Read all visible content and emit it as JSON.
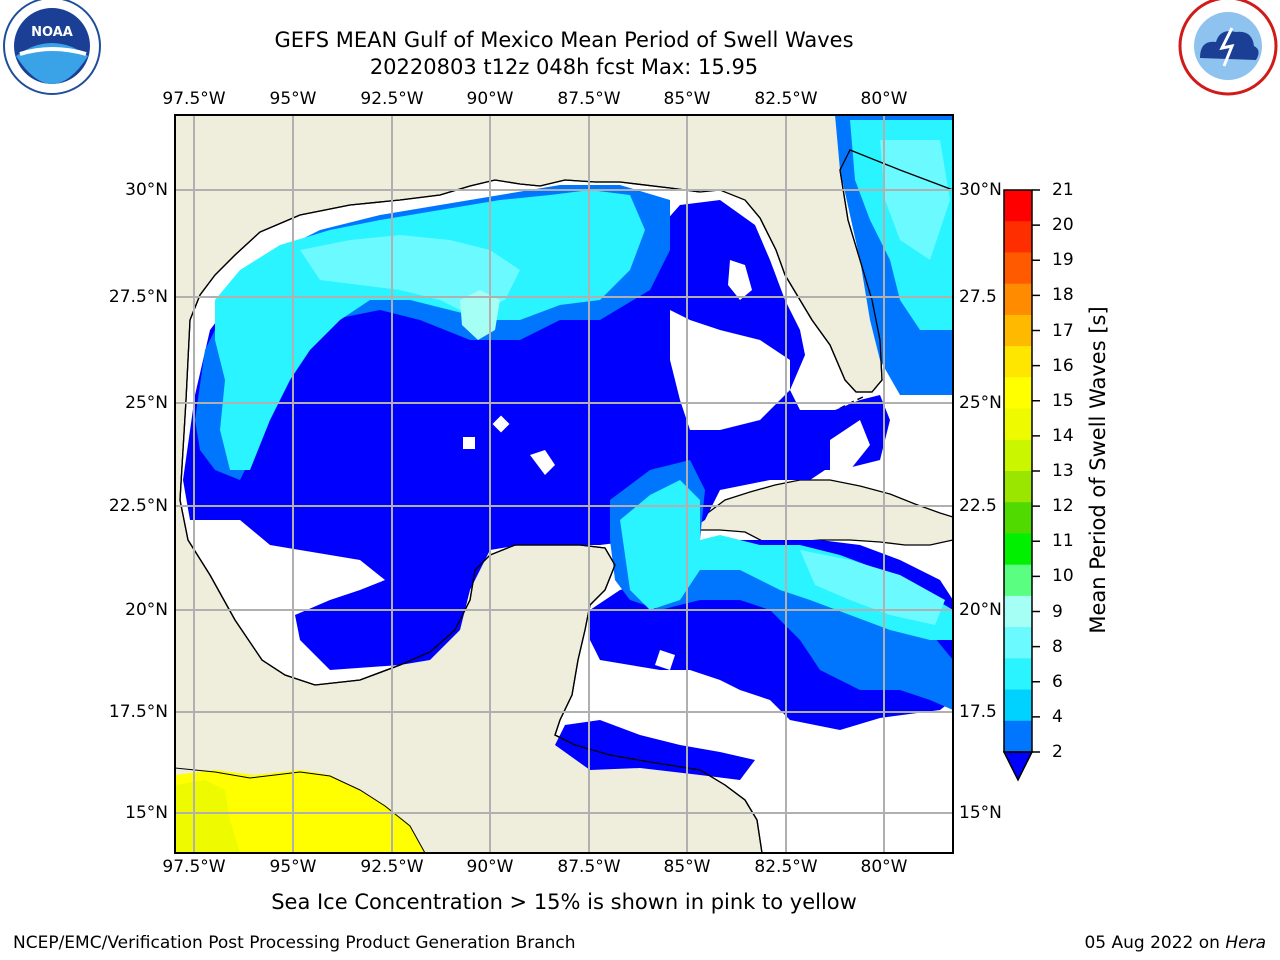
{
  "header": {
    "title_line1": "GEFS MEAN Gulf of Mexico Mean Period of Swell Waves",
    "title_line2": "20220803 t12z 048h fcst   Max: 15.95"
  },
  "logos": {
    "left": "noaa-logo",
    "right": "national-weather-service-logo"
  },
  "map": {
    "lon_ticks": [
      "97.5°W",
      "95°W",
      "92.5°W",
      "90°W",
      "87.5°W",
      "85°W",
      "82.5°W",
      "80°W"
    ],
    "lat_ticks_left": [
      "30°N",
      "27.5°N",
      "25°N",
      "22.5°N",
      "20°N",
      "17.5°N",
      "15°N"
    ],
    "lat_ticks_right": [
      "30°N",
      "27.5",
      "25°N",
      "22.5",
      "20°N",
      "17.5",
      "15°N"
    ],
    "land_color": "#efeedc",
    "grid": true
  },
  "colorbar": {
    "label": "Mean Period of Swell Waves [s]",
    "ticks": [
      "2",
      "4",
      "6",
      "8",
      "9",
      "10",
      "11",
      "12",
      "13",
      "14",
      "15",
      "16",
      "17",
      "18",
      "19",
      "20",
      "21"
    ],
    "colors": [
      "#0076ff",
      "#00d2ff",
      "#2af4ff",
      "#6bfaff",
      "#a6fff5",
      "#5aff82",
      "#00f000",
      "#50da00",
      "#9ae600",
      "#caf700",
      "#eefb00",
      "#ffff00",
      "#ffe600",
      "#ffba00",
      "#ff8c00",
      "#ff5a00",
      "#ff2e00",
      "#ff0000"
    ],
    "under_color": "#0000ff"
  },
  "note": "Sea Ice Concentration > 15% is shown in pink to yellow",
  "footer": {
    "left": "NCEP/EMC/Verification Post Processing Product Generation Branch",
    "right_date": "05 Aug 2022 on ",
    "right_host": "Hera"
  }
}
